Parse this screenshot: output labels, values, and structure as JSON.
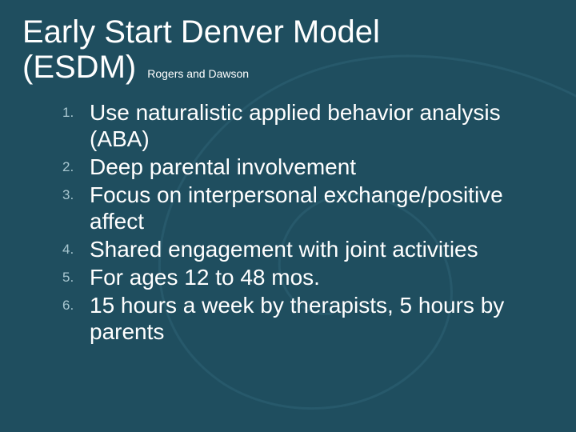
{
  "slide": {
    "background_color": "#1f4e5f",
    "swirl_color": "#27596b",
    "title_color": "#ffffff",
    "subtitle_color": "#ffffff",
    "body_text_color": "#ffffff",
    "number_color": "#a8c7d0",
    "title_line1": "Early Start Denver Model",
    "title_line2": "(ESDM)",
    "subtitle": "Rogers and Dawson",
    "title_fontsize": 40,
    "subtitle_fontsize": 14,
    "body_fontsize": 28,
    "number_fontsize": 17,
    "items": [
      "Use naturalistic applied behavior analysis (ABA)",
      "Deep parental involvement",
      "Focus on interpersonal exchange/positive affect",
      "Shared engagement with joint activities",
      "For ages 12 to 48 mos.",
      "15 hours a week by therapists, 5 hours by parents"
    ]
  }
}
